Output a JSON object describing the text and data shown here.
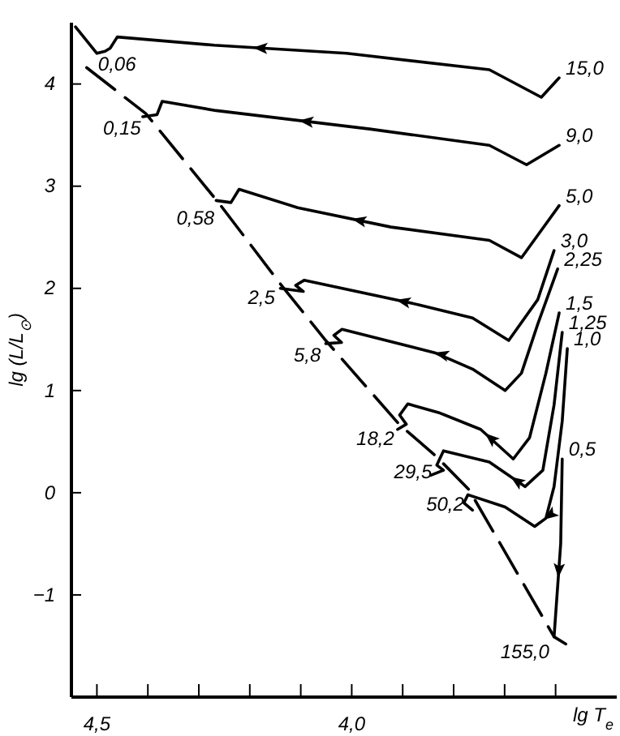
{
  "chart_data": {
    "type": "line",
    "xlabel": "lg T$_{e}$",
    "ylabel": "lg (L/L$_{⊙}$)",
    "xlim": [
      4.55,
      3.48
    ],
    "ylim": [
      -2.0,
      4.6
    ],
    "xticks": [
      {
        "value": 4.5,
        "label": "4,5"
      },
      {
        "value": 4.4,
        "label": null
      },
      {
        "value": 4.3,
        "label": null
      },
      {
        "value": 4.2,
        "label": null
      },
      {
        "value": 4.1,
        "label": null
      },
      {
        "value": 4.0,
        "label": "4,0"
      },
      {
        "value": 3.9,
        "label": null
      },
      {
        "value": 3.8,
        "label": null
      },
      {
        "value": 3.7,
        "label": null
      },
      {
        "value": 3.6,
        "label": null
      }
    ],
    "yticks": [
      -1,
      0,
      1,
      2,
      3,
      4
    ],
    "grid": false,
    "line_style": "solid",
    "series": [
      {
        "name": "15,0",
        "color": "#000000",
        "x": [
          3.593,
          3.628,
          3.73,
          4.01,
          4.27,
          4.46,
          4.474,
          4.484,
          4.5,
          4.542
        ],
        "values": [
          4.06,
          3.87,
          4.14,
          4.3,
          4.38,
          4.46,
          4.35,
          4.32,
          4.3,
          4.56
        ]
      },
      {
        "name": "9,0",
        "color": "#000000",
        "x": [
          3.593,
          3.657,
          3.73,
          3.965,
          4.266,
          4.372,
          4.382,
          4.41
        ],
        "values": [
          3.4,
          3.21,
          3.4,
          3.56,
          3.74,
          3.83,
          3.7,
          3.68
        ]
      },
      {
        "name": "5,0",
        "color": "#000000",
        "x": [
          3.593,
          3.667,
          3.73,
          3.923,
          4.106,
          4.221,
          4.237,
          4.266
        ],
        "values": [
          2.81,
          2.3,
          2.47,
          2.6,
          2.79,
          2.97,
          2.84,
          2.86
        ]
      },
      {
        "name": "3,0",
        "color": "#000000",
        "x": [
          3.603,
          3.635,
          3.692,
          3.763,
          3.869,
          4.093,
          4.11,
          4.095,
          4.14
        ],
        "values": [
          2.37,
          1.89,
          1.49,
          1.71,
          1.84,
          2.08,
          2.03,
          1.97,
          2.0
        ]
      },
      {
        "name": "2,25",
        "color": "#000000",
        "x": [
          3.596,
          3.635,
          3.667,
          3.699,
          3.763,
          3.837,
          4.019,
          4.035,
          4.02,
          4.051
        ],
        "values": [
          2.19,
          1.65,
          1.17,
          1.0,
          1.21,
          1.37,
          1.6,
          1.54,
          1.47,
          1.46
        ]
      },
      {
        "name": "1,5",
        "color": "#000000",
        "x": [
          3.593,
          3.619,
          3.651,
          3.683,
          3.747,
          3.827,
          3.89,
          3.906,
          3.893,
          3.91
        ],
        "values": [
          1.76,
          1.17,
          0.54,
          0.33,
          0.62,
          0.78,
          0.87,
          0.76,
          0.67,
          0.62
        ]
      },
      {
        "name": "1,25",
        "color": "#000000",
        "x": [
          3.587,
          3.603,
          3.625,
          3.66,
          3.73,
          3.82,
          3.833,
          3.82,
          3.845
        ],
        "values": [
          1.57,
          0.86,
          0.22,
          0.06,
          0.3,
          0.41,
          0.27,
          0.22,
          0.17
        ]
      },
      {
        "name": "1,0",
        "color": "#000000",
        "x": [
          3.577,
          3.587,
          3.603,
          3.619,
          3.641,
          3.699,
          3.772,
          3.78,
          3.763
        ],
        "values": [
          1.41,
          0.7,
          0.06,
          -0.25,
          -0.33,
          -0.14,
          -0.02,
          -0.1,
          -0.17
        ]
      },
      {
        "name": "0,5",
        "color": "#000000",
        "x": [
          3.587,
          3.59,
          3.603,
          3.58
        ],
        "values": [
          0.33,
          -0.5,
          -1.41,
          -1.48
        ]
      },
      {
        "color": "#000000",
        "line_style": "dashed",
        "x": [
          4.52,
          4.404,
          4.26,
          4.141,
          4.051,
          3.907,
          3.833,
          3.77,
          3.603
        ],
        "values": [
          4.16,
          3.71,
          2.83,
          2.05,
          1.49,
          0.67,
          0.35,
          0.03,
          -1.41
        ]
      }
    ],
    "annotations": [
      {
        "text": "0,06",
        "x": 4.52,
        "y": 4.16
      },
      {
        "text": "0,15",
        "x": 4.404,
        "y": 3.71
      },
      {
        "text": "0,58",
        "x": 4.26,
        "y": 2.83
      },
      {
        "text": "2,5",
        "x": 4.141,
        "y": 2.05
      },
      {
        "text": "5,8",
        "x": 4.051,
        "y": 1.49
      },
      {
        "text": "18,2",
        "x": 3.907,
        "y": 0.67
      },
      {
        "text": "29,5",
        "x": 3.833,
        "y": 0.35
      },
      {
        "text": "50,2",
        "x": 3.77,
        "y": 0.03
      },
      {
        "text": "155,0",
        "x": 3.603,
        "y": -1.41
      }
    ]
  }
}
